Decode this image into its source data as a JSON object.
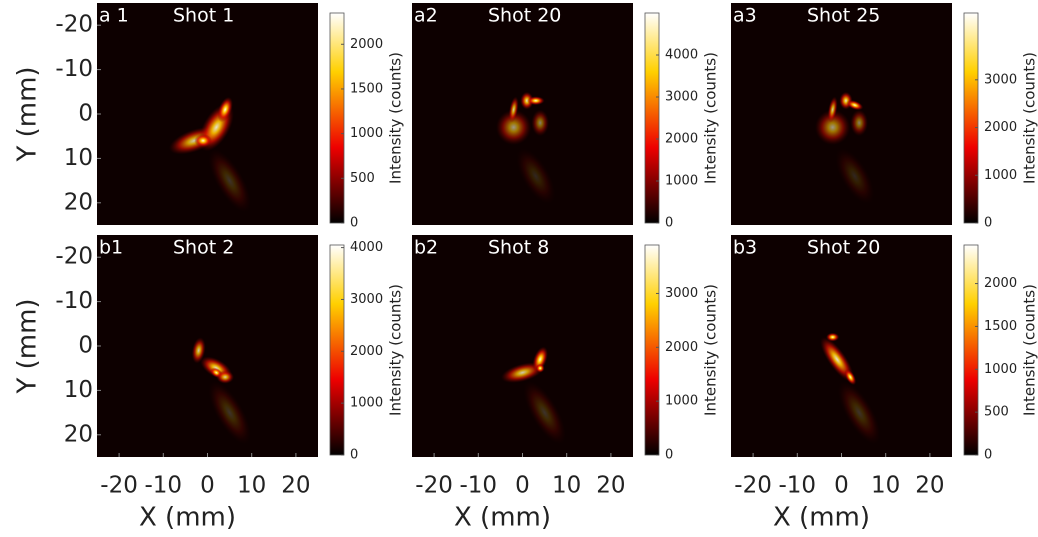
{
  "chart_data": [
    {
      "type": "heatmap",
      "panel_label": "a 1",
      "title": "Shot 1",
      "ylabel": "Y (mm)",
      "xlim": [
        -25,
        25
      ],
      "ylim": [
        -25,
        25
      ],
      "yticks": [
        -20,
        -10,
        0,
        10,
        20
      ],
      "colorbar": {
        "label": "Intensity (counts)",
        "colormap": "hot",
        "clim": [
          0,
          2350
        ],
        "ticks": [
          0,
          500,
          1000,
          1500,
          2000
        ]
      }
    },
    {
      "type": "heatmap",
      "panel_label": "a2",
      "title": "Shot 20",
      "xlim": [
        -25,
        25
      ],
      "ylim": [
        -25,
        25
      ],
      "colorbar": {
        "label": "Intensity (counts)",
        "colormap": "hot",
        "clim": [
          0,
          5000
        ],
        "ticks": [
          0,
          1000,
          2000,
          3000,
          4000
        ]
      }
    },
    {
      "type": "heatmap",
      "panel_label": "a3",
      "title": "Shot 25",
      "xlim": [
        -25,
        25
      ],
      "ylim": [
        -25,
        25
      ],
      "colorbar": {
        "label": "Intensity (counts)",
        "colormap": "hot",
        "clim": [
          0,
          4400
        ],
        "ticks": [
          0,
          1000,
          2000,
          3000
        ]
      }
    },
    {
      "type": "heatmap",
      "panel_label": "b1",
      "title": "Shot 2",
      "xlabel": "X (mm)",
      "ylabel": "Y (mm)",
      "xlim": [
        -25,
        25
      ],
      "ylim": [
        -25,
        25
      ],
      "xticks": [
        -20,
        -10,
        0,
        10,
        20
      ],
      "yticks": [
        -20,
        -10,
        0,
        10,
        20
      ],
      "colorbar": {
        "label": "Intensity (counts)",
        "colormap": "hot",
        "clim": [
          0,
          4050
        ],
        "ticks": [
          0,
          1000,
          2000,
          3000,
          4000
        ]
      }
    },
    {
      "type": "heatmap",
      "panel_label": "b2",
      "title": "Shot 8",
      "xlabel": "X (mm)",
      "xlim": [
        -25,
        25
      ],
      "ylim": [
        -25,
        25
      ],
      "xticks": [
        -20,
        -10,
        0,
        10,
        20
      ],
      "colorbar": {
        "label": "Intensity (counts)",
        "colormap": "hot",
        "clim": [
          0,
          3900
        ],
        "ticks": [
          0,
          1000,
          2000,
          3000
        ]
      }
    },
    {
      "type": "heatmap",
      "panel_label": "b3",
      "title": "Shot 20",
      "xlabel": "X (mm)",
      "xlim": [
        -25,
        25
      ],
      "ylim": [
        -25,
        25
      ],
      "xticks": [
        -20,
        -10,
        0,
        10,
        20
      ],
      "colorbar": {
        "label": "Intensity (counts)",
        "colormap": "hot",
        "clim": [
          0,
          2450
        ],
        "ticks": [
          0,
          500,
          1000,
          1500,
          2000
        ]
      }
    }
  ]
}
